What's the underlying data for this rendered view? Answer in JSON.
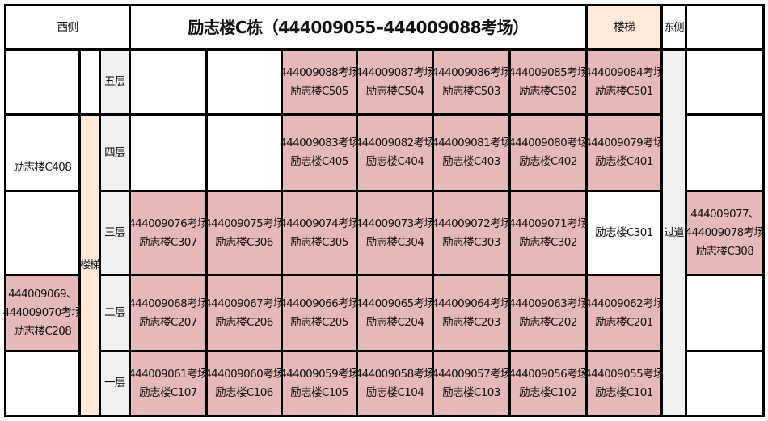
{
  "header": {
    "west": "西侧",
    "title": "励志楼C栋（444009055–444009088考场）",
    "stairs": "楼梯",
    "east": "东侧"
  },
  "west_stairs": "楼梯",
  "corridor": "过道",
  "colors": {
    "exam_room": "#e6b8b7",
    "stairs": "#fde9d9",
    "floor_label": "#f0f0f0"
  },
  "floors": [
    {
      "label": "五层",
      "west": null,
      "east": null,
      "rooms": [
        null,
        null,
        {
          "exam": "444009088考场",
          "room": "励志楼C505"
        },
        {
          "exam": "444009087考场",
          "room": "励志楼C504"
        },
        {
          "exam": "444009086考场",
          "room": "励志楼C503"
        },
        {
          "exam": "444009085考场",
          "room": "励志楼C502"
        },
        {
          "exam": "444009084考场",
          "room": "励志楼C501"
        }
      ]
    },
    {
      "label": "四层",
      "west": {
        "room": "励志楼C408"
      },
      "east": null,
      "rooms": [
        null,
        null,
        {
          "exam": "444009083考场",
          "room": "励志楼C405"
        },
        {
          "exam": "444009082考场",
          "room": "励志楼C404"
        },
        {
          "exam": "444009081考场",
          "room": "励志楼C403"
        },
        {
          "exam": "444009080考场",
          "room": "励志楼C402"
        },
        {
          "exam": "444009079考场",
          "room": "励志楼C401"
        }
      ]
    },
    {
      "label": "三层",
      "west": null,
      "east": {
        "exam": "444009077、",
        "exam2": "444009078考场",
        "room": "励志楼C308"
      },
      "rooms": [
        {
          "exam": "444009076考场",
          "room": "励志楼C307"
        },
        {
          "exam": "444009075考场",
          "room": "励志楼C306"
        },
        {
          "exam": "444009074考场",
          "room": "励志楼C305"
        },
        {
          "exam": "444009073考场",
          "room": "励志楼C304"
        },
        {
          "exam": "444009072考场",
          "room": "励志楼C303"
        },
        {
          "exam": "444009071考场",
          "room": "励志楼C302"
        },
        {
          "room": "励志楼C301"
        }
      ]
    },
    {
      "label": "二层",
      "east": null,
      "west": {
        "exam": "444009069、",
        "exam2": "444009070考场",
        "room": "励志楼C208"
      },
      "rooms": [
        {
          "exam": "444009068考场",
          "room": "励志楼C207"
        },
        {
          "exam": "444009067考场",
          "room": "励志楼C206"
        },
        {
          "exam": "444009066考场",
          "room": "励志楼C205"
        },
        {
          "exam": "444009065考场",
          "room": "励志楼C204"
        },
        {
          "exam": "444009064考场",
          "room": "励志楼C203"
        },
        {
          "exam": "444009063考场",
          "room": "励志楼C202"
        },
        {
          "exam": "444009062考场",
          "room": "励志楼C201"
        }
      ]
    },
    {
      "label": "一层",
      "west": null,
      "east": null,
      "rooms": [
        {
          "exam": "444009061考场",
          "room": "励志楼C107"
        },
        {
          "exam": "444009060考场",
          "room": "励志楼C106"
        },
        {
          "exam": "444009059考场",
          "room": "励志楼C105"
        },
        {
          "exam": "444009058考场",
          "room": "励志楼C104"
        },
        {
          "exam": "444009057考场",
          "room": "励志楼C103"
        },
        {
          "exam": "444009056考场",
          "room": "励志楼C102"
        },
        {
          "exam": "444009055考场",
          "room": "励志楼C101"
        }
      ]
    }
  ]
}
